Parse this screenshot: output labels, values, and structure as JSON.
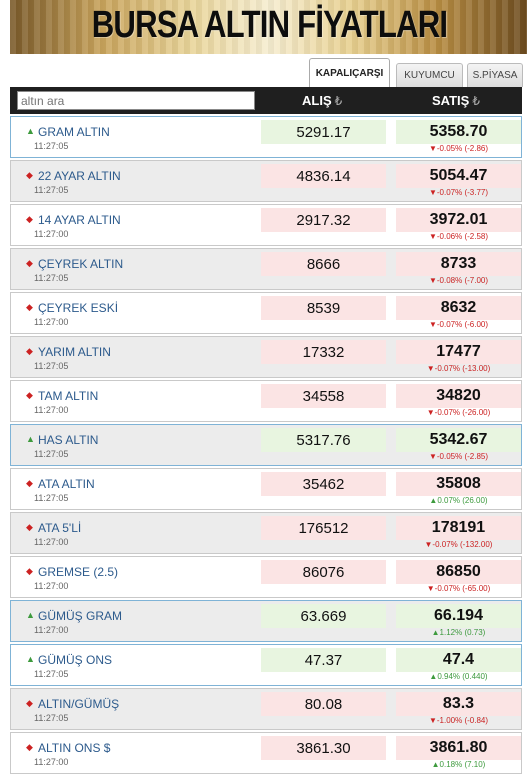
{
  "banner": {
    "title": "BURSA ALTIN FİYATLARI"
  },
  "tabs": [
    {
      "label": "KAPALIÇARŞI",
      "active": true
    },
    {
      "label": "KUYUMCU",
      "active": false
    },
    {
      "label": "S.PİYASA",
      "active": false
    }
  ],
  "header": {
    "search_placeholder": "altın ara",
    "buy_label": "ALIŞ",
    "sell_label": "SATIŞ",
    "currency_symbol": "₺"
  },
  "colors": {
    "up": "#3d9a3d",
    "down": "#cc2222",
    "link": "#2c5a8c"
  },
  "rows": [
    {
      "name": "GRAM ALTIN",
      "time": "11:27:05",
      "dir": "up",
      "buy": "5291.17",
      "sell": "5358.70",
      "change": "▼-0.05% (-2.86)",
      "change_dir": "down"
    },
    {
      "name": "22 AYAR ALTIN",
      "time": "11:27:05",
      "dir": "down",
      "buy": "4836.14",
      "sell": "5054.47",
      "change": "▼-0.07% (-3.77)",
      "change_dir": "down"
    },
    {
      "name": "14 AYAR ALTIN",
      "time": "11:27:00",
      "dir": "down",
      "buy": "2917.32",
      "sell": "3972.01",
      "change": "▼-0.06% (-2.58)",
      "change_dir": "down"
    },
    {
      "name": "ÇEYREK ALTIN",
      "time": "11:27:05",
      "dir": "down",
      "buy": "8666",
      "sell": "8733",
      "change": "▼-0.08% (-7.00)",
      "change_dir": "down"
    },
    {
      "name": "ÇEYREK ESKİ",
      "time": "11:27:00",
      "dir": "down",
      "buy": "8539",
      "sell": "8632",
      "change": "▼-0.07% (-6.00)",
      "change_dir": "down"
    },
    {
      "name": "YARIM ALTIN",
      "time": "11:27:05",
      "dir": "down",
      "buy": "17332",
      "sell": "17477",
      "change": "▼-0.07% (-13.00)",
      "change_dir": "down"
    },
    {
      "name": "TAM ALTIN",
      "time": "11:27:00",
      "dir": "down",
      "buy": "34558",
      "sell": "34820",
      "change": "▼-0.07% (-26.00)",
      "change_dir": "down"
    },
    {
      "name": "HAS ALTIN",
      "time": "11:27:05",
      "dir": "up",
      "buy": "5317.76",
      "sell": "5342.67",
      "change": "▼-0.05% (-2.85)",
      "change_dir": "down"
    },
    {
      "name": "ATA ALTIN",
      "time": "11:27:05",
      "dir": "down",
      "buy": "35462",
      "sell": "35808",
      "change": "▲0.07% (26.00)",
      "change_dir": "up"
    },
    {
      "name": "ATA 5'Lİ",
      "time": "11:27:00",
      "dir": "down",
      "buy": "176512",
      "sell": "178191",
      "change": "▼-0.07% (-132.00)",
      "change_dir": "down"
    },
    {
      "name": "GREMSE (2.5)",
      "time": "11:27:00",
      "dir": "down",
      "buy": "86076",
      "sell": "86850",
      "change": "▼-0.07% (-65.00)",
      "change_dir": "down"
    },
    {
      "name": "GÜMÜŞ GRAM",
      "time": "11:27:00",
      "dir": "up",
      "buy": "63.669",
      "sell": "66.194",
      "change": "▲1.12% (0.73)",
      "change_dir": "up"
    },
    {
      "name": "GÜMÜŞ ONS",
      "time": "11:27:05",
      "dir": "up",
      "buy": "47.37",
      "sell": "47.4",
      "change": "▲0.94% (0.440)",
      "change_dir": "up"
    },
    {
      "name": "ALTIN/GÜMÜŞ",
      "time": "11:27:05",
      "dir": "down",
      "buy": "80.08",
      "sell": "83.3",
      "change": "▼-1.00% (-0.84)",
      "change_dir": "down"
    },
    {
      "name": "ALTIN ONS $",
      "time": "11:27:00",
      "dir": "down",
      "buy": "3861.30",
      "sell": "3861.80",
      "change": "▲0.18% (7.10)",
      "change_dir": "up"
    }
  ]
}
